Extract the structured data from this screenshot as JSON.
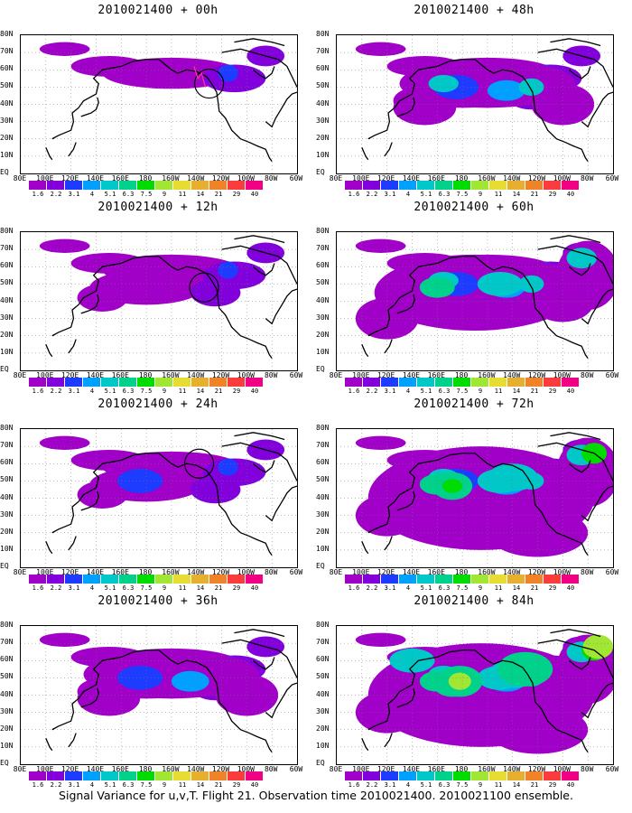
{
  "caption": "Signal Variance for u,v,T. Flight 21. Observation time 2010021400. 2010021100 ensemble.",
  "colorbar": {
    "labels": [
      "1.6",
      "2.2",
      "3.1",
      "4",
      "5.1",
      "6.3",
      "7.5",
      "9",
      "11",
      "14",
      "21",
      "29",
      "40"
    ],
    "colors": [
      "#a000c8",
      "#8200dc",
      "#1e3cff",
      "#00a0ff",
      "#00c8c8",
      "#00d28c",
      "#00dc00",
      "#a0e632",
      "#e6dc32",
      "#e6af2d",
      "#f08228",
      "#fa3c3c",
      "#f00082"
    ]
  },
  "chart_data": {
    "type": "heatmap",
    "lon_labels": [
      "80E",
      "100E",
      "120E",
      "140E",
      "160E",
      "180",
      "160W",
      "140W",
      "120W",
      "100W",
      "80W",
      "60W"
    ],
    "lat_labels": [
      "80N",
      "70N",
      "60N",
      "50N",
      "40N",
      "30N",
      "20N",
      "10N",
      "EQ"
    ],
    "lon_range": [
      80,
      300
    ],
    "lat_range": [
      0,
      80
    ],
    "panels": [
      {
        "title": "2010021400 + 00h",
        "level": 0
      },
      {
        "title": "2010021400 + 48h",
        "level": 4
      },
      {
        "title": "2010021400 + 12h",
        "level": 1
      },
      {
        "title": "2010021400 + 60h",
        "level": 5
      },
      {
        "title": "2010021400 + 24h",
        "level": 2
      },
      {
        "title": "2010021400 + 72h",
        "level": 6
      },
      {
        "title": "2010021400 + 36h",
        "level": 3
      },
      {
        "title": "2010021400 + 84h",
        "level": 7
      }
    ]
  }
}
